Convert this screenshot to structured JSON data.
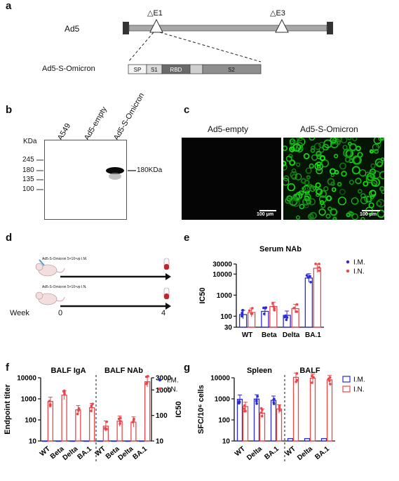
{
  "panels": {
    "a": "a",
    "b": "b",
    "c": "c",
    "d": "d",
    "e": "e",
    "f": "f",
    "g": "g"
  },
  "panel_a": {
    "construct": "Ad5",
    "deletion_e1": "△E1",
    "deletion_e3": "△E3",
    "insert_name": "Ad5-S-Omicron",
    "segments": [
      "SP",
      "S1",
      "RBD",
      "",
      "S2"
    ]
  },
  "panel_b": {
    "lanes": [
      "A549",
      "Ad5-empty",
      "Ad5-S-Omicron"
    ],
    "kda_label": "KDa",
    "markers": [
      "245",
      "180",
      "135",
      "100"
    ],
    "band_label": "180KDa"
  },
  "panel_c": {
    "left_title": "Ad5-empty",
    "right_title": "Ad5-S-Omicron",
    "scalebar": "100 μm"
  },
  "panel_d": {
    "row1": "Ad5-S-Omicron 5×10⁹vp  I.M.",
    "row2": "Ad5-S-Omicron 5×10⁹vp  I.N.",
    "week_label": "Week",
    "week_start": "0",
    "week_end": "4"
  },
  "colors": {
    "im": "#2a2ad6",
    "in": "#e8474c"
  },
  "legend": {
    "im": "I.M.",
    "in": "I.N."
  },
  "chart_data": [
    {
      "panel": "e",
      "type": "bar",
      "title": "Serum NAb",
      "ylabel": "IC50",
      "yscale": "log",
      "ylim": [
        30,
        30000
      ],
      "yticks": [
        "30",
        "100",
        "1000",
        "10000",
        "30000"
      ],
      "categories": [
        "WT",
        "Beta",
        "Delta",
        "BA.1"
      ],
      "series": [
        {
          "name": "I.M.",
          "values": [
            120,
            170,
            110,
            6500
          ]
        },
        {
          "name": "I.N.",
          "values": [
            150,
            290,
            230,
            19000
          ]
        }
      ]
    },
    {
      "panel": "f",
      "type": "bar",
      "subplots": [
        {
          "title": "BALF IgA",
          "ylabel": "Endpoint  titer",
          "yscale": "log",
          "ylim": [
            10,
            10000
          ],
          "yticks": [
            "10",
            "100",
            "1000",
            "10000"
          ],
          "categories": [
            "WT",
            "Beta",
            "Delta",
            "BA.1"
          ],
          "series": [
            {
              "name": "I.M.",
              "values": [
                10,
                10,
                10,
                10
              ]
            },
            {
              "name": "I.N.",
              "values": [
                750,
                1500,
                300,
                380
              ]
            }
          ]
        },
        {
          "title": "BALF NAb",
          "ylabel": "IC50",
          "yscale": "log",
          "ylim": [
            10,
            3000
          ],
          "yticks": [
            "10",
            "100",
            "1000",
            "3000"
          ],
          "categories": [
            "WT",
            "Beta",
            "Delta",
            "BA.1"
          ],
          "series": [
            {
              "name": "I.M.",
              "values": [
                10,
                10,
                10,
                10
              ]
            },
            {
              "name": "I.N.",
              "values": [
                38,
                60,
                55,
                2100
              ]
            }
          ]
        }
      ]
    },
    {
      "panel": "g",
      "type": "bar",
      "ylabel": "SFC/10⁶ cells",
      "yscale": "log",
      "ylim": [
        10,
        10000
      ],
      "yticks": [
        "10",
        "100",
        "1000",
        "10000"
      ],
      "subplots": [
        {
          "title": "Spleen",
          "categories": [
            "WT",
            "Delta",
            "BA.1"
          ],
          "series": [
            {
              "name": "I.M.",
              "values": [
                950,
                980,
                850
              ]
            },
            {
              "name": "I.N.",
              "values": [
                430,
                210,
                330
              ]
            }
          ]
        },
        {
          "title": "BALF",
          "categories": [
            "WT",
            "Delta",
            "BA.1"
          ],
          "series": [
            {
              "name": "I.M.",
              "values": [
                13,
                13,
                13
              ]
            },
            {
              "name": "I.N.",
              "values": [
                10500,
                9500,
                8000
              ]
            }
          ]
        }
      ]
    }
  ]
}
